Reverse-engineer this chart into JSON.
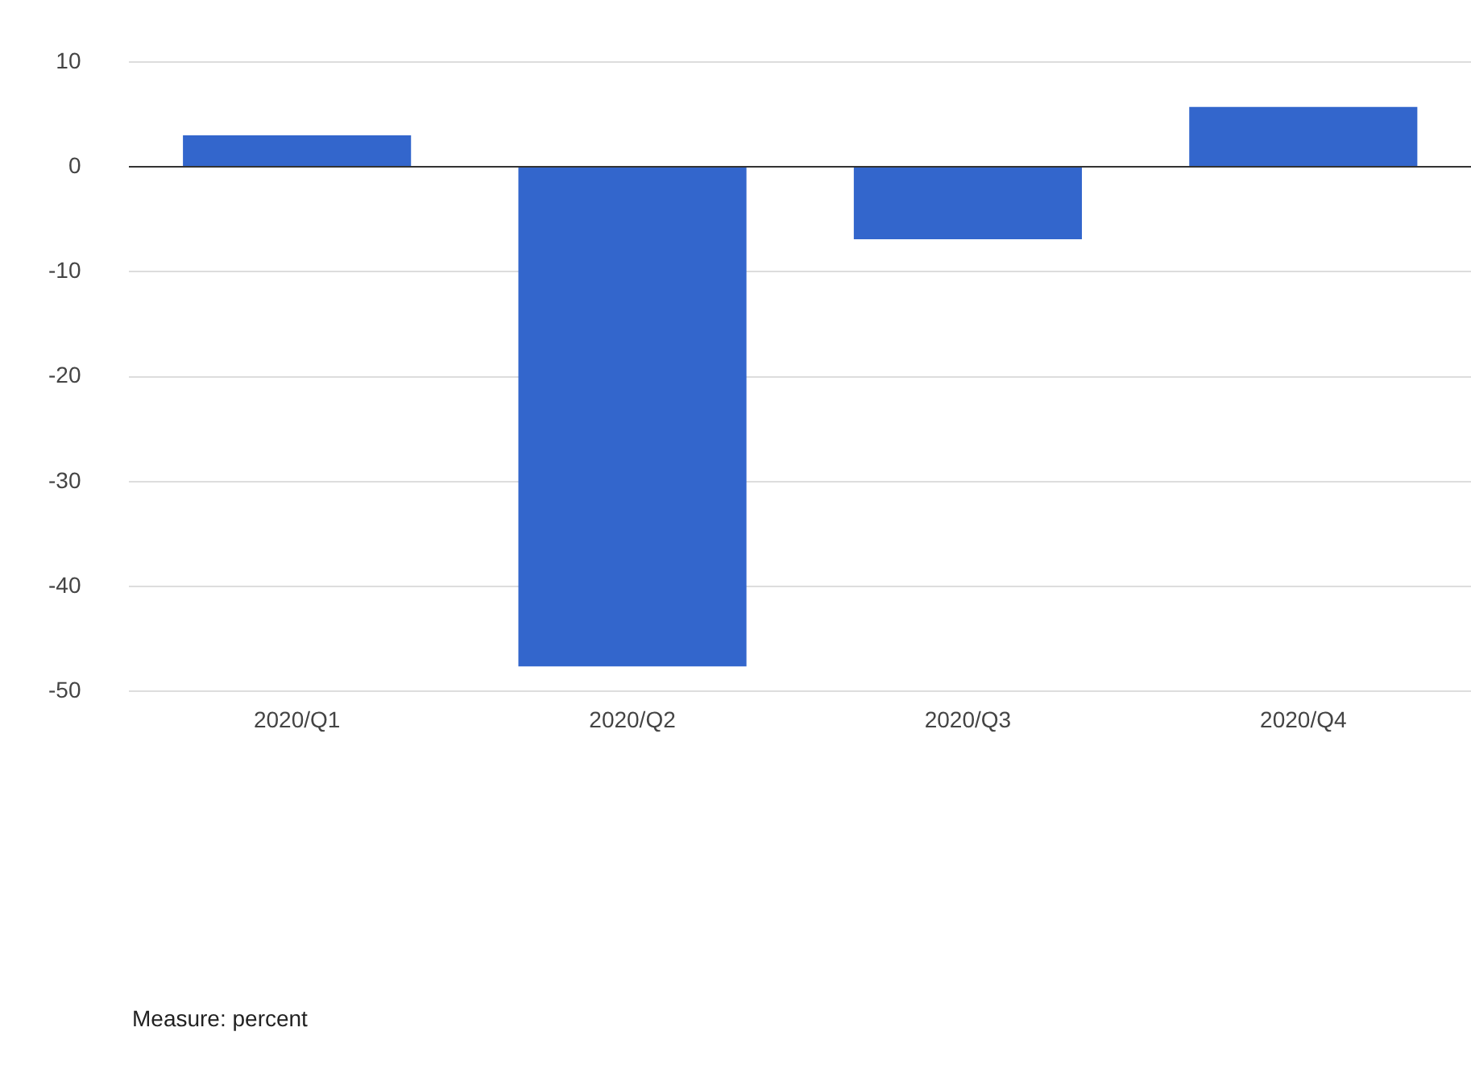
{
  "chart_data": {
    "type": "bar",
    "categories": [
      "2020/Q1",
      "2020/Q2",
      "2020/Q3",
      "2020/Q4"
    ],
    "values": [
      3,
      -47.6,
      -6.9,
      5.7
    ],
    "color": "#3366cc",
    "ylim": [
      -50,
      10
    ],
    "yticks": [
      -50,
      -40,
      -30,
      -20,
      -10,
      0,
      10
    ],
    "grid": "y",
    "legend": false,
    "annotations": [
      "Measure: percent"
    ]
  }
}
